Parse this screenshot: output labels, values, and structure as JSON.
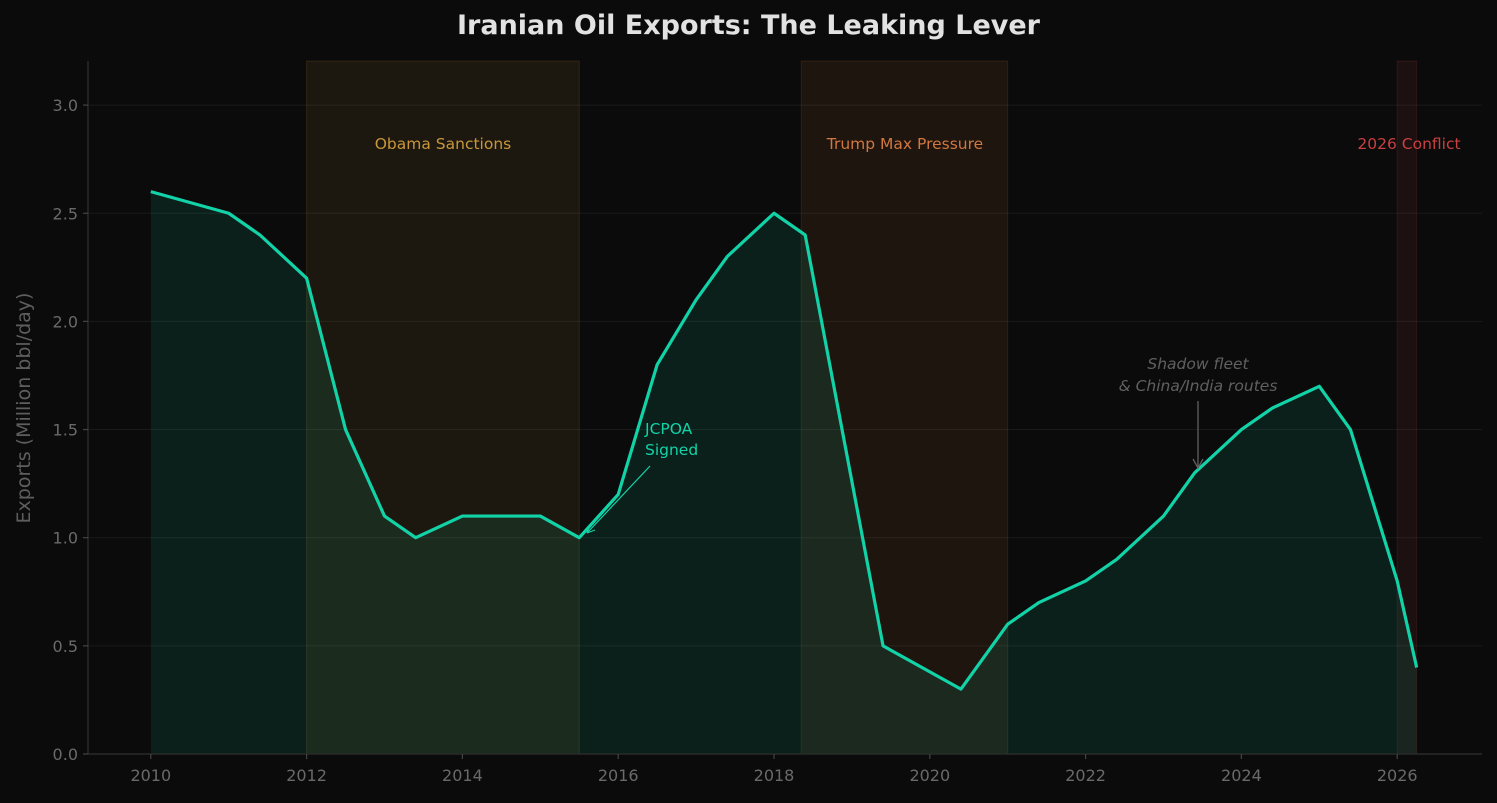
{
  "chart_data": {
    "type": "area",
    "title": "Iranian Oil Exports: The Leaking Lever",
    "xlabel": "",
    "ylabel": "Exports (Million bbl/day)",
    "xlim": [
      2009.2,
      2027.0
    ],
    "ylim": [
      0.0,
      3.2
    ],
    "grid": true,
    "x_ticks": [
      "2010",
      "2012",
      "2014",
      "2016",
      "2018",
      "2020",
      "2022",
      "2024",
      "2026"
    ],
    "y_ticks": [
      "0.0",
      "0.5",
      "1.0",
      "1.5",
      "2.0",
      "2.5",
      "3.0"
    ],
    "series": [
      {
        "name": "Iranian Oil Exports",
        "color": "#12d3a8",
        "x": [
          2010,
          2011,
          2011.4,
          2012,
          2012.5,
          2013,
          2013.4,
          2014,
          2015,
          2015.5,
          2016,
          2016.5,
          2017,
          2017.4,
          2018,
          2018.4,
          2019.4,
          2020.4,
          2021,
          2021.4,
          2022,
          2022.4,
          2023,
          2023.4,
          2024,
          2024.4,
          2025,
          2025.4,
          2026,
          2026.25
        ],
        "values": [
          2.6,
          2.5,
          2.4,
          2.2,
          1.5,
          1.1,
          1.0,
          1.1,
          1.1,
          1.0,
          1.2,
          1.8,
          2.1,
          2.3,
          2.5,
          2.4,
          0.5,
          0.3,
          0.6,
          0.7,
          0.8,
          0.9,
          1.1,
          1.3,
          1.5,
          1.6,
          1.7,
          1.5,
          0.8,
          0.4
        ]
      }
    ],
    "shaded_periods": [
      {
        "label": "Obama Sanctions",
        "start": 2012,
        "end": 2015.5,
        "color": "#c8963a"
      },
      {
        "label": "Trump Max Pressure",
        "start": 2018.35,
        "end": 2021,
        "color": "#d2773f"
      },
      {
        "label": "2026 Conflict",
        "start": 2026,
        "end": 2026.25,
        "color": "#c94040"
      }
    ],
    "annotations": [
      {
        "text": "JCPOA\nSigned",
        "x": 2015.5,
        "y": 1.0,
        "color": "#12d3a8"
      },
      {
        "text": "Shadow fleet\n& China/India routes",
        "x": 2023.4,
        "y": 1.3,
        "color": "#6a6a6a"
      }
    ]
  },
  "labels": {
    "title": "Iranian Oil Exports: The Leaking Lever",
    "ylabel": "Exports (Million bbl/day)",
    "obama": "Obama Sanctions",
    "trump": "Trump Max Pressure",
    "conflict": "2026 Conflict",
    "jcpoa_line1": "JCPOA",
    "jcpoa_line2": "Signed",
    "shadow_line1": "Shadow fleet",
    "shadow_line2": "& China/India routes"
  }
}
